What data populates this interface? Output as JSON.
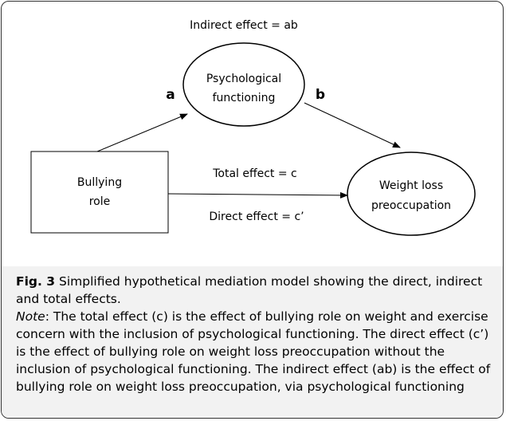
{
  "diagram": {
    "annotations": {
      "indirect": "Indirect effect = ab",
      "total": "Total effect = c",
      "direct": "Direct effect = c’"
    },
    "nodes": [
      {
        "lines": [
          "Psychological",
          "functioning"
        ]
      },
      {
        "lines": [
          "Bullying",
          "role"
        ]
      },
      {
        "lines": [
          "Weight loss",
          "preoccupation"
        ]
      }
    ],
    "edges": [
      {
        "label": "a"
      },
      {
        "label": "b"
      }
    ]
  },
  "caption": {
    "label": "Fig. 3",
    "text": " Simplified hypothetical mediation model showing the direct, indirect and total effects.",
    "note_label": "Note",
    "note_text": ": The total effect (c) is the effect of bullying role on weight and exercise concern with the inclusion of psychological functioning. The direct effect (c’) is the effect of bullying role on weight loss preoccupation without the inclusion of psychological functioning. The indirect effect (ab) is the effect of bullying role on weight loss preoccupation, via psychological functioning"
  }
}
